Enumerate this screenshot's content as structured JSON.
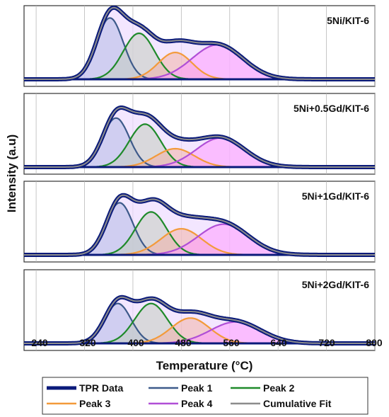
{
  "chart_data": {
    "type": "line",
    "xlabel": "Temperature (°C)",
    "ylabel": "Intensity (a.u)",
    "xlim": [
      220,
      800
    ],
    "x_ticks": [
      "240",
      "320",
      "400",
      "480",
      "560",
      "640",
      "720",
      "800"
    ],
    "grid": "vertical lines",
    "legend_position": "bottom-center",
    "legend": [
      "TPR Data",
      "Peak 1",
      "Peak 2",
      "Peak 3",
      "Peak 4",
      "Cumulative Fit"
    ],
    "colors": {
      "tpr_data": "#0a1a7a",
      "peak1": "#3d5a8a",
      "peak2": "#1f8a2a",
      "peak3": "#f39a3a",
      "peak4": "#b04fd6",
      "cumulative_fit": "#8c8c8c",
      "peak1_fill": "#b3b9e6",
      "peak2_fill": "#c3ccbf",
      "peak3_fill": "#f1b3a7",
      "peak4_fill": "#ff9aff",
      "envelope_fill": "#eedcff"
    },
    "panels": [
      {
        "name": "5Ni/KIT-6",
        "peaks": [
          {
            "center": 362,
            "height": 0.8,
            "width": 22
          },
          {
            "center": 410,
            "height": 0.6,
            "width": 26
          },
          {
            "center": 470,
            "height": 0.35,
            "width": 28
          },
          {
            "center": 540,
            "height": 0.45,
            "width": 42
          }
        ]
      },
      {
        "name": "5Ni+0.5Gd/KIT-6",
        "peaks": [
          {
            "center": 372,
            "height": 0.64,
            "width": 22
          },
          {
            "center": 420,
            "height": 0.56,
            "width": 26
          },
          {
            "center": 470,
            "height": 0.24,
            "width": 32
          },
          {
            "center": 545,
            "height": 0.38,
            "width": 40
          }
        ]
      },
      {
        "name": "5Ni+1Gd/KIT-6",
        "peaks": [
          {
            "center": 378,
            "height": 0.68,
            "width": 22
          },
          {
            "center": 430,
            "height": 0.56,
            "width": 26
          },
          {
            "center": 480,
            "height": 0.34,
            "width": 34
          },
          {
            "center": 550,
            "height": 0.4,
            "width": 42
          }
        ]
      },
      {
        "name": "5Ni+2Gd/KIT-6",
        "peaks": [
          {
            "center": 375,
            "height": 0.52,
            "width": 22
          },
          {
            "center": 430,
            "height": 0.52,
            "width": 27
          },
          {
            "center": 495,
            "height": 0.33,
            "width": 32
          },
          {
            "center": 570,
            "height": 0.28,
            "width": 42
          }
        ]
      }
    ]
  }
}
